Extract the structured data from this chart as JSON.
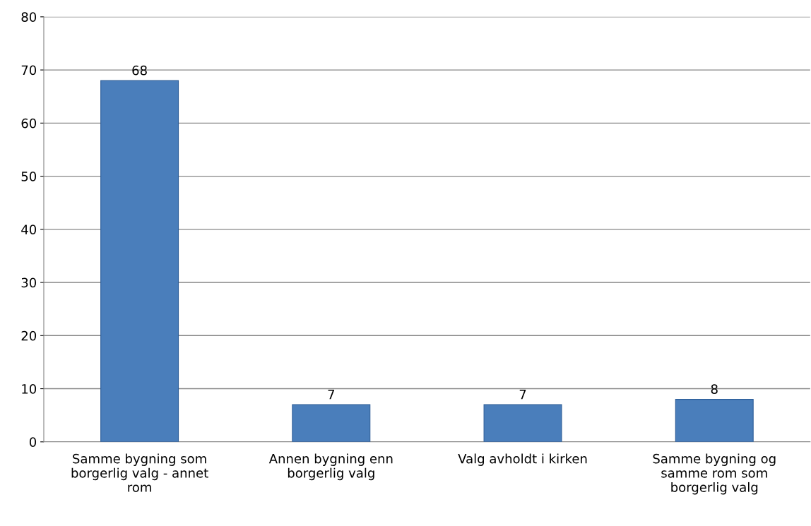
{
  "chart_data": {
    "type": "bar",
    "categories": [
      "Samme bygning som\nborgerlig valg - annet\nrom",
      "Annen bygning enn\nborgerlig valg",
      "Valg avholdt i kirken",
      "Samme bygning og\nsamme rom som\nborgerlig valg"
    ],
    "values": [
      68,
      7,
      7,
      8
    ],
    "color": "#4a7ebb",
    "ylim": [
      0,
      80
    ],
    "yticks": [
      0,
      10,
      20,
      30,
      40,
      50,
      60,
      70,
      80
    ],
    "grid": "y",
    "data_labels": true
  }
}
